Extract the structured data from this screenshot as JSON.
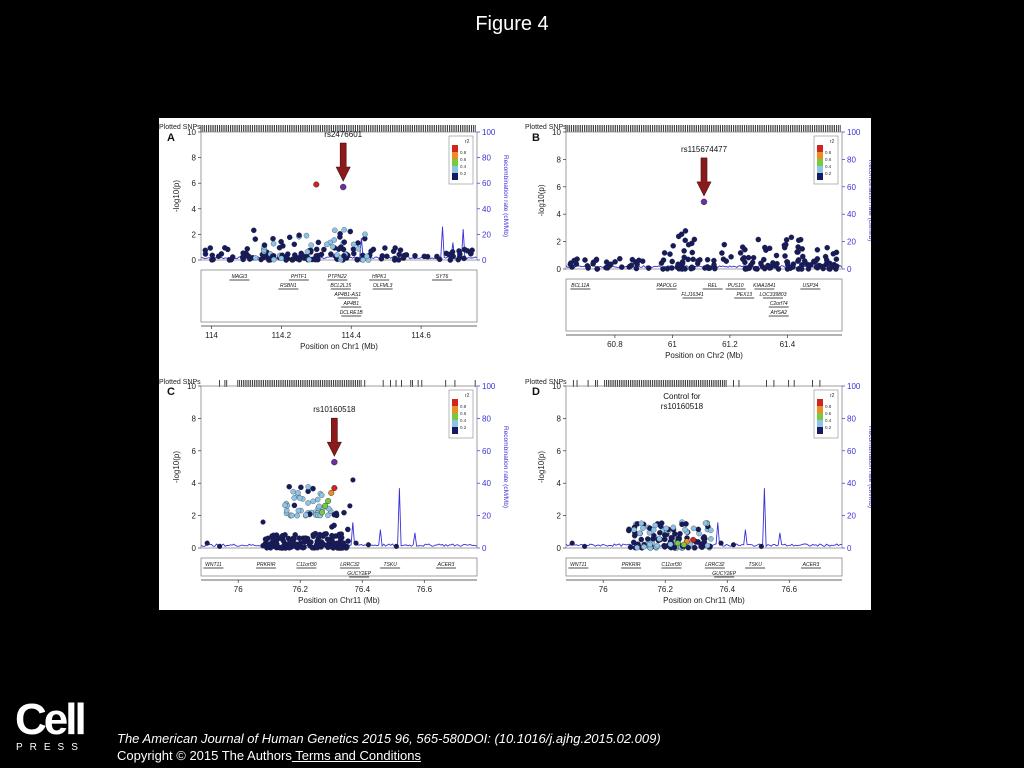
{
  "slide_title": "Figure 4",
  "logo": {
    "word": "Cell",
    "press": "PRESS"
  },
  "footer": {
    "citation": "The American Journal of Human Genetics 2015 96, 565-580DOI: (10.1016/j.ajhg.2015.02.009)",
    "copyright": "Copyright © 2015 The Authors",
    "terms_link": " Terms and Conditions"
  },
  "colors": {
    "ld_high": "#d0251f",
    "ld_08": "#ef8b25",
    "ld_06": "#79c843",
    "ld_04": "#8dc4e6",
    "ld_low": "#161a5e",
    "recomb": "#3b31d6",
    "arrow": "#8b1a1a"
  },
  "common": {
    "plotted_snps": "Plotted SNPs",
    "ylabel": "-log10(p)",
    "yticks": [
      "0",
      "2",
      "4",
      "6",
      "8",
      "10"
    ],
    "rticks": [
      "0",
      "20",
      "40",
      "60",
      "80",
      "100"
    ],
    "recomb_label": "Recombination rate (cM/Mb)",
    "legend_title": "r2",
    "legend_labels": [
      "0.8",
      "0.6",
      "0.4",
      "0.2"
    ]
  },
  "chart_data": [
    {
      "type": "scatter",
      "panel": "A",
      "annotation": "rs2476601",
      "xlabel": "Position on Chr1 (Mb)",
      "xlim": [
        113.97,
        114.76
      ],
      "ylim": [
        0,
        10
      ],
      "y2lim": [
        0,
        100
      ],
      "xticks": [
        114,
        114.2,
        114.4,
        114.6
      ],
      "xtick_labels": [
        "114",
        "114.2",
        "114.4",
        "114.6"
      ],
      "lead_snp": {
        "x": 114.377,
        "y": 5.7
      },
      "highlight_points": [
        {
          "x": 114.3,
          "y": 5.9,
          "ld": "high"
        }
      ],
      "bulk": [
        {
          "from": 113.98,
          "to": 114.75,
          "ymax": 1.0,
          "n": 110
        },
        {
          "from": 114.12,
          "to": 114.45,
          "ymax": 2.4,
          "n": 70,
          "light_fraction": 0.4
        }
      ],
      "recomb_peaks": [
        [
          114.43,
          22
        ],
        [
          114.66,
          40
        ],
        [
          114.72,
          28
        ],
        [
          114.69,
          18
        ],
        [
          114.56,
          10
        ]
      ],
      "genes": [
        {
          "name": "MAGI3",
          "x": 114.08,
          "row": 0
        },
        {
          "name": "PHTF1",
          "x": 114.25,
          "row": 0
        },
        {
          "name": "PTPN22",
          "x": 114.36,
          "row": 0
        },
        {
          "name": "HIPK1",
          "x": 114.48,
          "row": 0
        },
        {
          "name": "SYT6",
          "x": 114.66,
          "row": 0
        },
        {
          "name": "RSBN1",
          "x": 114.22,
          "row": 1
        },
        {
          "name": "BCL2L15",
          "x": 114.37,
          "row": 1
        },
        {
          "name": "OLFML3",
          "x": 114.49,
          "row": 1
        },
        {
          "name": "AP4B1-AS1",
          "x": 114.39,
          "row": 2
        },
        {
          "name": "AP4B1",
          "x": 114.4,
          "row": 3
        },
        {
          "name": "DCLRE1B",
          "x": 114.4,
          "row": 4
        }
      ]
    },
    {
      "type": "scatter",
      "panel": "B",
      "annotation": "rs115674477",
      "xlabel": "Position on Chr2 (Mb)",
      "xlim": [
        60.63,
        61.59
      ],
      "ylim": [
        0,
        10
      ],
      "y2lim": [
        0,
        100
      ],
      "xticks": [
        60.8,
        61,
        61.2,
        61.4
      ],
      "xtick_labels": [
        "60.8",
        "61",
        "61.2",
        "61.4"
      ],
      "lead_snp": {
        "x": 61.11,
        "y": 4.9
      },
      "highlight_points": [],
      "bulk": [
        {
          "from": 60.64,
          "to": 61.58,
          "ymax": 0.8,
          "n": 90
        },
        {
          "from": 60.95,
          "to": 61.58,
          "ymax": 2.4,
          "n": 80
        },
        {
          "from": 61.02,
          "to": 61.1,
          "ymax": 3.2,
          "n": 10
        }
      ],
      "recomb_peaks": [
        [
          60.72,
          4
        ],
        [
          60.9,
          2
        ]
      ],
      "genes": [
        {
          "name": "BCL11A",
          "x": 60.68,
          "row": 0
        },
        {
          "name": "PAPOLG",
          "x": 60.98,
          "row": 0
        },
        {
          "name": "REL",
          "x": 61.14,
          "row": 0
        },
        {
          "name": "PUS10",
          "x": 61.22,
          "row": 0
        },
        {
          "name": "KIAA1841",
          "x": 61.32,
          "row": 0
        },
        {
          "name": "USP34",
          "x": 61.48,
          "row": 0
        },
        {
          "name": "FLJ16341",
          "x": 61.07,
          "row": 1
        },
        {
          "name": "PEX13",
          "x": 61.25,
          "row": 1
        },
        {
          "name": "LOC339803",
          "x": 61.35,
          "row": 1
        },
        {
          "name": "C2orf74",
          "x": 61.37,
          "row": 2
        },
        {
          "name": "AHSA2",
          "x": 61.37,
          "row": 3
        }
      ]
    },
    {
      "type": "scatter",
      "panel": "C",
      "annotation": "rs10160518",
      "xlabel": "Position on Chr11 (Mb)",
      "xlim": [
        75.88,
        76.77
      ],
      "ylim": [
        0,
        10
      ],
      "y2lim": [
        0,
        100
      ],
      "xticks": [
        76,
        76.2,
        76.4,
        76.6
      ],
      "xtick_labels": [
        "76",
        "76.2",
        "76.4",
        "76.6"
      ],
      "lead_snp": {
        "x": 76.31,
        "y": 5.3
      },
      "highlight_points": [
        {
          "x": 76.31,
          "y": 3.7,
          "ld": "high"
        },
        {
          "x": 76.3,
          "y": 3.4,
          "ld": "0.8"
        },
        {
          "x": 76.28,
          "y": 2.6,
          "ld": "0.6"
        },
        {
          "x": 76.27,
          "y": 2.2,
          "ld": "0.6"
        },
        {
          "x": 76.29,
          "y": 2.9,
          "ld": "0.6"
        }
      ],
      "bulk": [
        {
          "from": 76.08,
          "to": 76.35,
          "ymax": 0.9,
          "n": 120
        },
        {
          "from": 76.15,
          "to": 76.3,
          "ymax": 3.9,
          "n": 45,
          "light_fraction": 0.85,
          "ymin": 2.0
        },
        {
          "from": 76.3,
          "to": 76.36,
          "ymax": 2.2,
          "n": 20
        }
      ],
      "extra_points": [
        [
          75.9,
          0.3
        ],
        [
          75.94,
          0.1
        ],
        [
          76.08,
          1.6
        ],
        [
          76.38,
          0.3
        ],
        [
          76.42,
          0.2
        ],
        [
          76.51,
          0.1
        ],
        [
          76.37,
          4.2
        ],
        [
          76.36,
          2.6
        ]
      ],
      "recomb_peaks": [
        [
          76.52,
          40
        ],
        [
          76.46,
          18
        ],
        [
          76.37,
          18
        ],
        [
          76.57,
          10
        ],
        [
          76.2,
          7
        ],
        [
          76.65,
          6
        ]
      ],
      "genes": [
        {
          "name": "WNT11",
          "x": 75.92,
          "row": 0
        },
        {
          "name": "PRKRIR",
          "x": 76.09,
          "row": 0
        },
        {
          "name": "C11orf30",
          "x": 76.22,
          "row": 0
        },
        {
          "name": "LRRC32",
          "x": 76.36,
          "row": 0
        },
        {
          "name": "TSKU",
          "x": 76.49,
          "row": 0
        },
        {
          "name": "ACER3",
          "x": 76.67,
          "row": 0
        },
        {
          "name": "GUCY2EP",
          "x": 76.39,
          "row": 1
        }
      ]
    },
    {
      "type": "scatter",
      "panel": "D",
      "annotation": "Control for",
      "annotation2": "rs10160518",
      "xlabel": "Position on Chr11 (Mb)",
      "xlim": [
        75.88,
        76.77
      ],
      "ylim": [
        0,
        10
      ],
      "y2lim": [
        0,
        100
      ],
      "xticks": [
        76,
        76.2,
        76.4,
        76.6
      ],
      "xtick_labels": [
        "76",
        "76.2",
        "76.4",
        "76.6"
      ],
      "lead_snp": null,
      "highlight_points": [
        {
          "x": 76.29,
          "y": 0.5,
          "ld": "high"
        },
        {
          "x": 76.27,
          "y": 0.4,
          "ld": "0.8"
        },
        {
          "x": 76.24,
          "y": 0.3,
          "ld": "0.6"
        },
        {
          "x": 76.26,
          "y": 0.2,
          "ld": "0.6"
        }
      ],
      "bulk": [
        {
          "from": 76.08,
          "to": 76.35,
          "ymax": 1.6,
          "n": 130,
          "light_fraction": 0.45
        }
      ],
      "extra_points": [
        [
          75.9,
          0.3
        ],
        [
          75.94,
          0.1
        ],
        [
          76.51,
          0.1
        ],
        [
          76.38,
          0.3
        ],
        [
          76.42,
          0.2
        ]
      ],
      "recomb_peaks": [
        [
          76.52,
          40
        ],
        [
          76.46,
          18
        ],
        [
          76.37,
          18
        ],
        [
          76.57,
          10
        ],
        [
          76.2,
          7
        ],
        [
          76.65,
          6
        ]
      ],
      "genes": [
        {
          "name": "WNT11",
          "x": 75.92,
          "row": 0
        },
        {
          "name": "PRKRIR",
          "x": 76.09,
          "row": 0
        },
        {
          "name": "C11orf30",
          "x": 76.22,
          "row": 0
        },
        {
          "name": "LRRC32",
          "x": 76.36,
          "row": 0
        },
        {
          "name": "TSKU",
          "x": 76.49,
          "row": 0
        },
        {
          "name": "ACER3",
          "x": 76.67,
          "row": 0
        },
        {
          "name": "GUCY2EP",
          "x": 76.39,
          "row": 1
        }
      ]
    }
  ]
}
